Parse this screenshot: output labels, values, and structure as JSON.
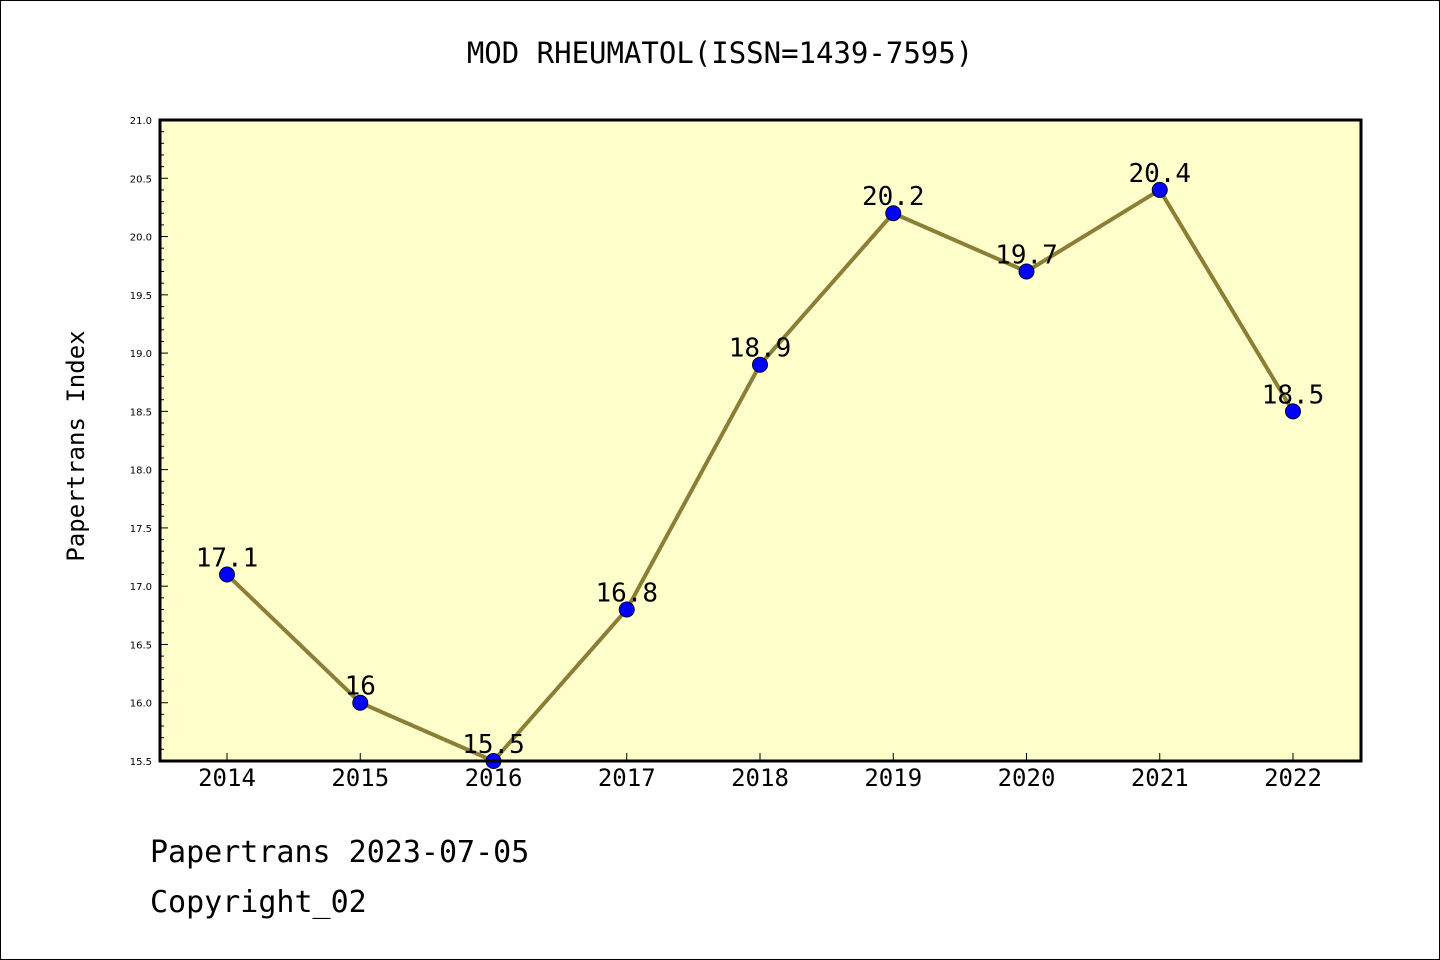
{
  "chart_data": {
    "type": "line",
    "title": "MOD RHEUMATOL(ISSN=1439-7595)",
    "ylabel": "Papertrans Index",
    "xlabel": "",
    "categories": [
      "2014",
      "2015",
      "2016",
      "2017",
      "2018",
      "2019",
      "2020",
      "2021",
      "2022"
    ],
    "series": [
      {
        "values": [
          17.1,
          16,
          15.5,
          16.8,
          18.9,
          20.2,
          19.7,
          20.4,
          18.5
        ],
        "labels": [
          "17.1",
          "16",
          "15.5",
          "16.8",
          "18.9",
          "20.2",
          "19.7",
          "20.4",
          "18.5"
        ]
      }
    ],
    "ylim": [
      15.5,
      21.0
    ],
    "yticks": [
      "15.5",
      "16.0",
      "16.5",
      "17.0",
      "17.5",
      "18.0",
      "18.5",
      "19.0",
      "19.5",
      "20.0",
      "20.5",
      "21.0"
    ],
    "grid": false,
    "colors": {
      "plot_background": "#ffffcc",
      "line": "#8b7f35",
      "marker": "#0000ff"
    }
  },
  "footer": {
    "date_text": "Papertrans 2023-07-05",
    "copyright_text": "Copyright_02"
  }
}
